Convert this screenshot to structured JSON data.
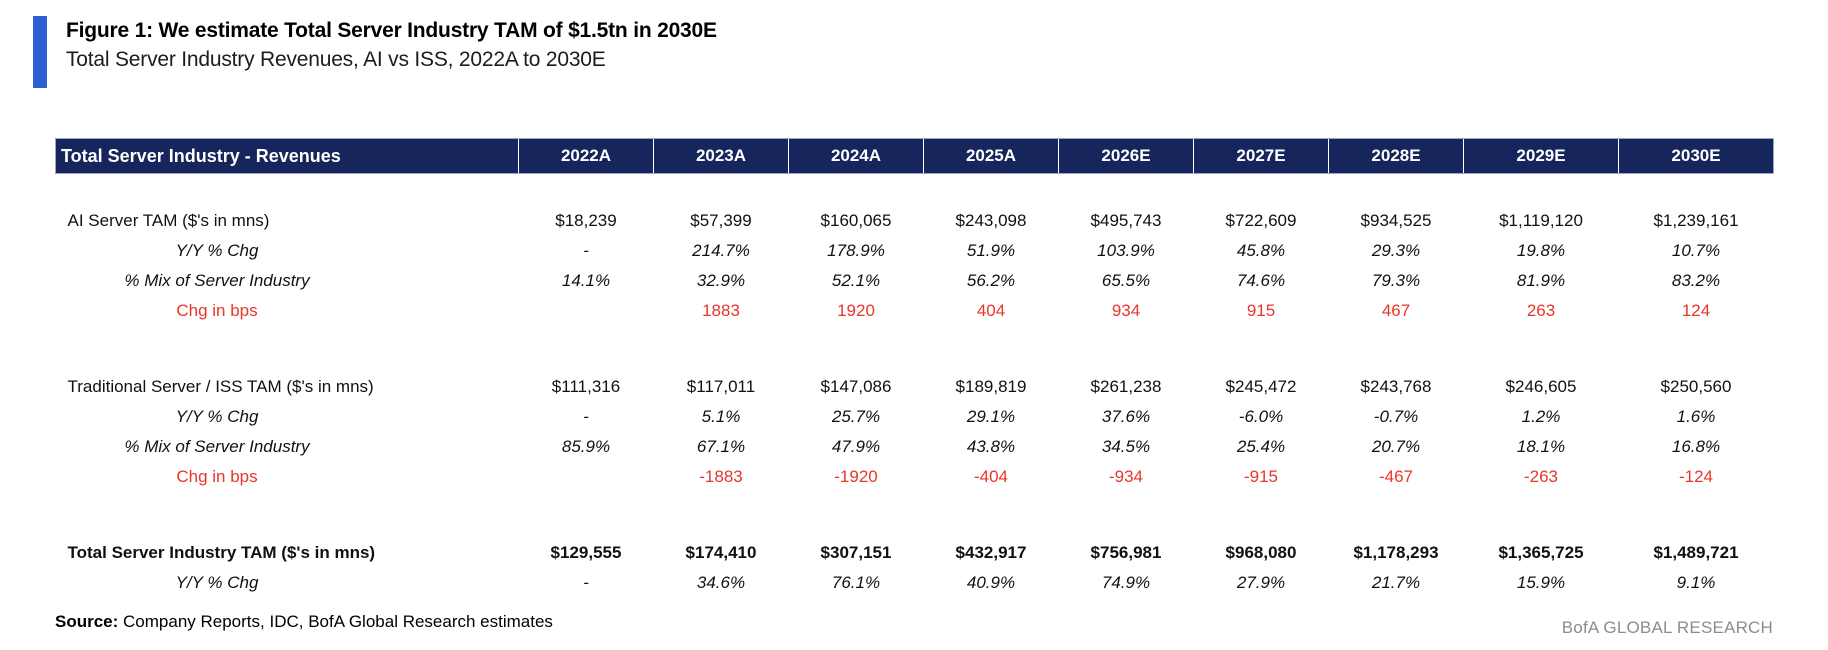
{
  "figure": {
    "title": "Figure 1: We estimate Total Server Industry TAM of $1.5tn in 2030E",
    "subtitle": "Total Server Industry Revenues, AI vs ISS, 2022A to 2030E"
  },
  "table": {
    "columns": [
      "Total Server Industry - Revenues",
      "2022A",
      "2023A",
      "2024A",
      "2025A",
      "2026E",
      "2027E",
      "2028E",
      "2029E",
      "2030E"
    ],
    "sections": [
      {
        "name": "ai-server",
        "rows": [
          {
            "label": "AI Server TAM ($'s in mns)",
            "style": "main",
            "values": [
              "$18,239",
              "$57,399",
              "$160,065",
              "$243,098",
              "$495,743",
              "$722,609",
              "$934,525",
              "$1,119,120",
              "$1,239,161"
            ]
          },
          {
            "label": "Y/Y % Chg",
            "style": "italic",
            "values": [
              "-",
              "214.7%",
              "178.9%",
              "51.9%",
              "103.9%",
              "45.8%",
              "29.3%",
              "19.8%",
              "10.7%"
            ]
          },
          {
            "label": "% Mix of Server Industry",
            "style": "italic",
            "values": [
              "14.1%",
              "32.9%",
              "52.1%",
              "56.2%",
              "65.5%",
              "74.6%",
              "79.3%",
              "81.9%",
              "83.2%"
            ]
          },
          {
            "label": "Chg in bps",
            "style": "red",
            "values": [
              "",
              "1883",
              "1920",
              "404",
              "934",
              "915",
              "467",
              "263",
              "124"
            ]
          }
        ]
      },
      {
        "name": "traditional-server",
        "rows": [
          {
            "label": "Traditional Server / ISS TAM ($'s in mns)",
            "style": "main",
            "values": [
              "$111,316",
              "$117,011",
              "$147,086",
              "$189,819",
              "$261,238",
              "$245,472",
              "$243,768",
              "$246,605",
              "$250,560"
            ]
          },
          {
            "label": "Y/Y % Chg",
            "style": "italic",
            "values": [
              "-",
              "5.1%",
              "25.7%",
              "29.1%",
              "37.6%",
              "-6.0%",
              "-0.7%",
              "1.2%",
              "1.6%"
            ]
          },
          {
            "label": "% Mix of Server Industry",
            "style": "italic",
            "values": [
              "85.9%",
              "67.1%",
              "47.9%",
              "43.8%",
              "34.5%",
              "25.4%",
              "20.7%",
              "18.1%",
              "16.8%"
            ]
          },
          {
            "label": "Chg in bps",
            "style": "red",
            "values": [
              "",
              "-1883",
              "-1920",
              "-404",
              "-934",
              "-915",
              "-467",
              "-263",
              "-124"
            ]
          }
        ]
      },
      {
        "name": "total",
        "rows": [
          {
            "label": "Total Server Industry TAM ($'s in mns)",
            "style": "total",
            "values": [
              "$129,555",
              "$174,410",
              "$307,151",
              "$432,917",
              "$756,981",
              "$968,080",
              "$1,178,293",
              "$1,365,725",
              "$1,489,721"
            ]
          },
          {
            "label": "Y/Y % Chg",
            "style": "italic",
            "values": [
              "-",
              "34.6%",
              "76.1%",
              "40.9%",
              "74.9%",
              "27.9%",
              "21.7%",
              "15.9%",
              "9.1%"
            ]
          }
        ]
      }
    ]
  },
  "chart_data": {
    "type": "table",
    "title": "Total Server Industry - Revenues",
    "categories": [
      "2022A",
      "2023A",
      "2024A",
      "2025A",
      "2026E",
      "2027E",
      "2028E",
      "2029E",
      "2030E"
    ],
    "series": [
      {
        "name": "AI Server TAM ($'s in mns)",
        "values": [
          18239,
          57399,
          160065,
          243098,
          495743,
          722609,
          934525,
          1119120,
          1239161
        ]
      },
      {
        "name": "AI Server Y/Y % Chg",
        "values": [
          null,
          214.7,
          178.9,
          51.9,
          103.9,
          45.8,
          29.3,
          19.8,
          10.7
        ]
      },
      {
        "name": "AI Server % Mix of Server Industry",
        "values": [
          14.1,
          32.9,
          52.1,
          56.2,
          65.5,
          74.6,
          79.3,
          81.9,
          83.2
        ]
      },
      {
        "name": "AI Server Chg in bps",
        "values": [
          null,
          1883,
          1920,
          404,
          934,
          915,
          467,
          263,
          124
        ]
      },
      {
        "name": "Traditional Server / ISS TAM ($'s in mns)",
        "values": [
          111316,
          117011,
          147086,
          189819,
          261238,
          245472,
          243768,
          246605,
          250560
        ]
      },
      {
        "name": "Traditional Server Y/Y % Chg",
        "values": [
          null,
          5.1,
          25.7,
          29.1,
          37.6,
          -6.0,
          -0.7,
          1.2,
          1.6
        ]
      },
      {
        "name": "Traditional Server % Mix of Server Industry",
        "values": [
          85.9,
          67.1,
          47.9,
          43.8,
          34.5,
          25.4,
          20.7,
          18.1,
          16.8
        ]
      },
      {
        "name": "Traditional Server Chg in bps",
        "values": [
          null,
          -1883,
          -1920,
          -404,
          -934,
          -915,
          -467,
          -263,
          -124
        ]
      },
      {
        "name": "Total Server Industry TAM ($'s in mns)",
        "values": [
          129555,
          174410,
          307151,
          432917,
          756981,
          968080,
          1178293,
          1365725,
          1489721
        ]
      },
      {
        "name": "Total Server Industry Y/Y % Chg",
        "values": [
          null,
          34.6,
          76.1,
          40.9,
          74.9,
          27.9,
          21.7,
          15.9,
          9.1
        ]
      }
    ]
  },
  "source": {
    "label": "Source:",
    "text": " Company Reports, IDC, BofA Global Research estimates"
  },
  "footer": {
    "brand": "BofA GLOBAL RESEARCH"
  },
  "colors": {
    "header_bg": "#16265C",
    "accent_bar": "#2D5ED2",
    "negative_red": "#E8362A",
    "brand_gray": "#8C8C8C"
  }
}
